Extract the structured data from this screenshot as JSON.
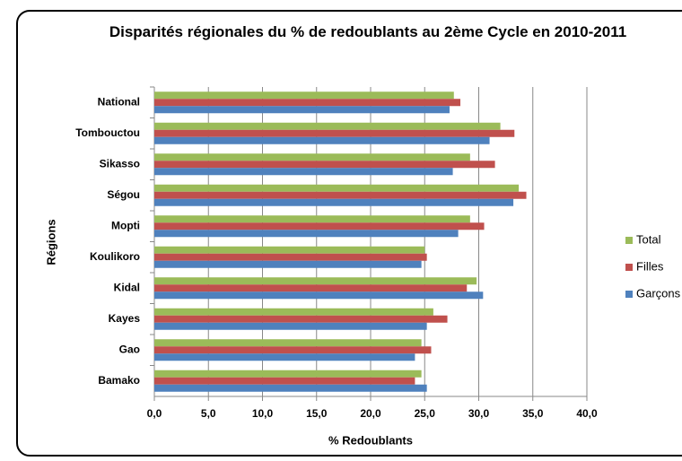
{
  "chart_data": {
    "type": "bar",
    "orientation": "horizontal",
    "title": "Disparités régionales du % de redoublants au 2ème Cycle en 2010-2011",
    "x_label": "% Redoublants",
    "y_label": "Régions",
    "categories": [
      "National",
      "Tombouctou",
      "Sikasso",
      "Ségou",
      "Mopti",
      "Koulikoro",
      "Kidal",
      "Kayes",
      "Gao",
      "Bamako"
    ],
    "series": [
      {
        "name": "Total",
        "color": "#9bbb59",
        "values": [
          27.7,
          32.0,
          29.2,
          33.7,
          29.2,
          25.0,
          29.8,
          25.8,
          24.7,
          24.7
        ]
      },
      {
        "name": "Filles",
        "color": "#c0504d",
        "values": [
          28.3,
          33.3,
          31.5,
          34.4,
          30.5,
          25.2,
          28.9,
          27.1,
          25.6,
          24.1
        ]
      },
      {
        "name": "Garçons",
        "color": "#4f81bd",
        "values": [
          27.3,
          31.0,
          27.6,
          33.2,
          28.1,
          24.7,
          30.4,
          25.2,
          24.1,
          25.2
        ]
      }
    ],
    "xlim": [
      0,
      40
    ],
    "xticks": [
      {
        "value": 0,
        "label": "0,0"
      },
      {
        "value": 5,
        "label": "5,0"
      },
      {
        "value": 10,
        "label": "10,0"
      },
      {
        "value": 15,
        "label": "15,0"
      },
      {
        "value": 20,
        "label": "20,0"
      },
      {
        "value": 25,
        "label": "25,0"
      },
      {
        "value": 30,
        "label": "30,0"
      },
      {
        "value": 35,
        "label": "35,0"
      },
      {
        "value": 40,
        "label": "40,0"
      }
    ],
    "grid": true,
    "legend": "right"
  }
}
